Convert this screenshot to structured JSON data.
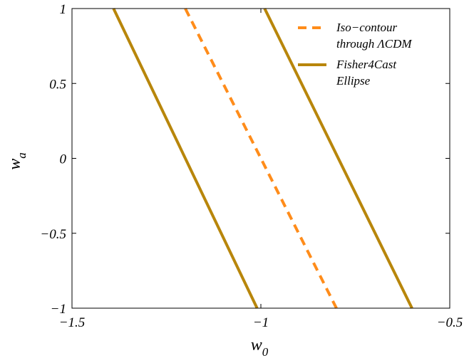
{
  "chart_data": {
    "type": "line",
    "xlabel": {
      "base": "w",
      "sub": "0"
    },
    "ylabel": {
      "base": "w",
      "sub": "a"
    },
    "xlim": [
      -1.5,
      -0.5
    ],
    "ylim": [
      -1,
      1
    ],
    "xticks": [
      -1.5,
      -1,
      -0.5
    ],
    "xtick_labels": [
      "−1.5",
      "−1",
      "−0.5"
    ],
    "yticks": [
      -1,
      -0.5,
      0,
      0.5,
      1
    ],
    "ytick_labels": [
      "−1",
      "−0.5",
      "0",
      "0.5",
      "1"
    ],
    "grid": false,
    "legend_position": "top-right",
    "series": [
      {
        "name": "Iso−contour through ΛCDM",
        "legend_lines": [
          "Iso−contour",
          "through ΛCDM"
        ],
        "style": "dashed",
        "color": "#ff8c1a",
        "x": [
          -1.2,
          -0.8
        ],
        "y": [
          1,
          -1
        ]
      },
      {
        "name": "Fisher4Cast Ellipse",
        "legend_lines": [
          "Fisher4Cast",
          "Ellipse"
        ],
        "style": "solid",
        "color": "#b8860b",
        "x": [
          -1.39,
          -1.01
        ],
        "y": [
          1,
          -1
        ]
      },
      {
        "name": "",
        "legend_lines": [],
        "style": "solid",
        "color": "#b8860b",
        "x": [
          -0.99,
          -0.6
        ],
        "y": [
          1,
          -1
        ]
      }
    ]
  }
}
